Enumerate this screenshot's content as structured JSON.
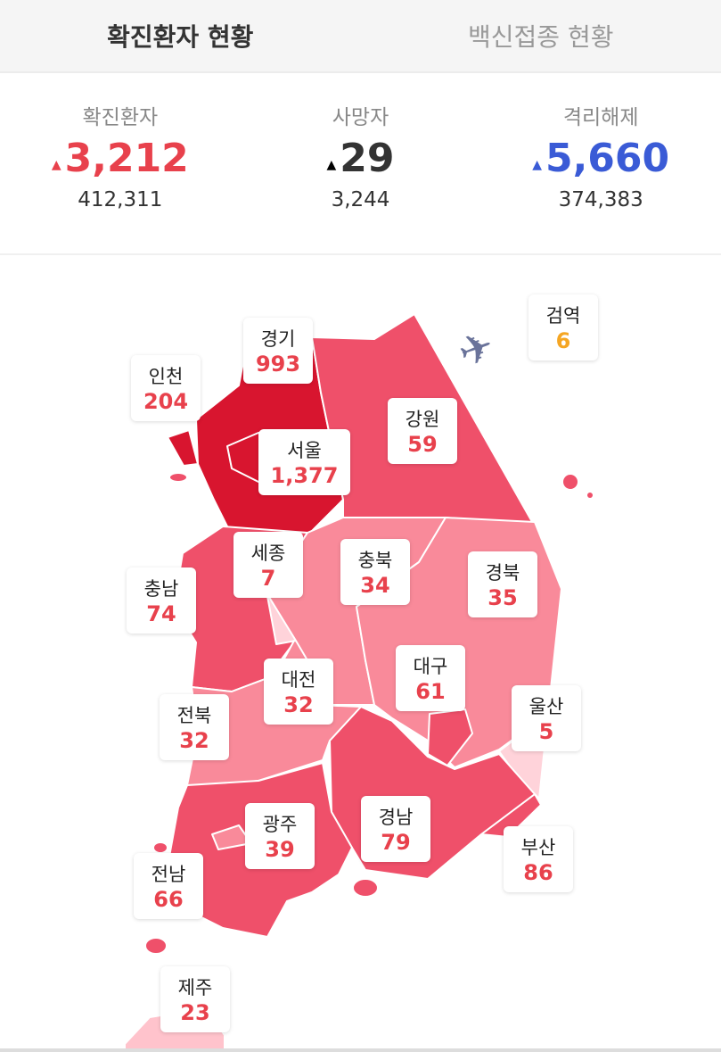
{
  "tabs": [
    {
      "label": "확진환자 현황",
      "active": true
    },
    {
      "label": "백신접종 현황",
      "active": false
    }
  ],
  "stats": [
    {
      "label": "확진환자",
      "delta": "3,212",
      "total": "412,311",
      "color": "#e8414c"
    },
    {
      "label": "사망자",
      "delta": "29",
      "total": "3,244",
      "color": "#333333"
    },
    {
      "label": "격리해제",
      "delta": "5,660",
      "total": "374,383",
      "color": "#3a5bd6"
    }
  ],
  "regions": [
    {
      "name": "경기",
      "value": "993"
    },
    {
      "name": "인천",
      "value": "204"
    },
    {
      "name": "서울",
      "value": "1,377"
    },
    {
      "name": "강원",
      "value": "59"
    },
    {
      "name": "세종",
      "value": "7"
    },
    {
      "name": "충북",
      "value": "34"
    },
    {
      "name": "경북",
      "value": "35"
    },
    {
      "name": "충남",
      "value": "74"
    },
    {
      "name": "대전",
      "value": "32"
    },
    {
      "name": "대구",
      "value": "61"
    },
    {
      "name": "울산",
      "value": "5"
    },
    {
      "name": "전북",
      "value": "32"
    },
    {
      "name": "광주",
      "value": "39"
    },
    {
      "name": "경남",
      "value": "79"
    },
    {
      "name": "부산",
      "value": "86"
    },
    {
      "name": "전남",
      "value": "66"
    },
    {
      "name": "제주",
      "value": "23"
    }
  ],
  "quarantine": {
    "name": "검역",
    "value": "6",
    "color": "#f5a623",
    "icon": "airplane-icon"
  },
  "colors": {
    "high": "#d8152f",
    "mid": "#ef506a",
    "low": "#f98a9a",
    "min": "#ffd3da"
  }
}
